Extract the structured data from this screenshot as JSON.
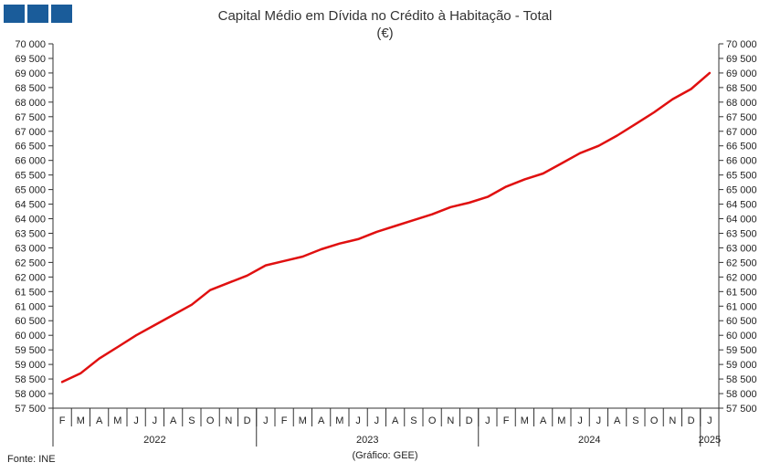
{
  "header": {
    "title": "Capital Médio em Dívida no Crédito à Habitação - Total",
    "unit": "(€)"
  },
  "footer": {
    "source": "Fonte: INE",
    "credit": "(Gráfico: GEE)"
  },
  "colors": {
    "line": "#e01010",
    "axis": "#333333",
    "logo": "#1a5c9a"
  },
  "chart_data": {
    "type": "line",
    "title": "Capital Médio em Dívida no Crédito à Habitação - Total",
    "subtitle": "(€)",
    "ylim": [
      57500,
      70000
    ],
    "ytick_step": 500,
    "y_axes": "left-and-right",
    "grid": false,
    "month_labels": [
      "F",
      "M",
      "A",
      "M",
      "J",
      "J",
      "A",
      "S",
      "O",
      "N",
      "D",
      "J",
      "F",
      "M",
      "A",
      "M",
      "J",
      "J",
      "A",
      "S",
      "O",
      "N",
      "D",
      "J",
      "F",
      "M",
      "A",
      "M",
      "J",
      "J",
      "A",
      "S",
      "O",
      "N",
      "D",
      "J"
    ],
    "years": [
      {
        "label": "2022",
        "months": 11
      },
      {
        "label": "2023",
        "months": 12
      },
      {
        "label": "2024",
        "months": 12
      },
      {
        "label": "2025",
        "months": 1
      }
    ],
    "series": [
      {
        "name": "",
        "values": [
          58400,
          58700,
          59200,
          59600,
          60000,
          60350,
          60700,
          61050,
          61550,
          61800,
          62050,
          62400,
          62550,
          62700,
          62950,
          63150,
          63300,
          63550,
          63750,
          63950,
          64150,
          64400,
          64550,
          64750,
          65100,
          65350,
          65550,
          65900,
          66250,
          66500,
          66850,
          67250,
          67650,
          68100,
          68450,
          69000
        ]
      }
    ]
  }
}
